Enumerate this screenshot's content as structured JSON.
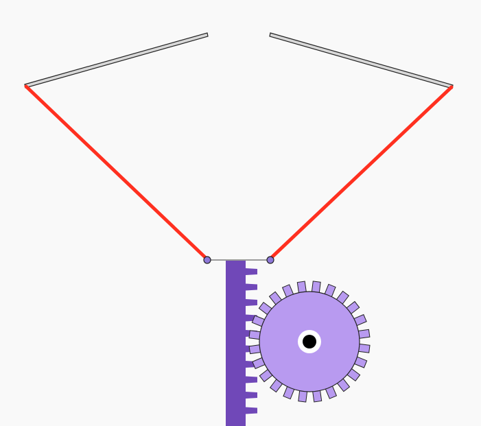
{
  "colors": {
    "background": "#f9f9f9",
    "cable": "#ff3020",
    "arm_fill": "#d8d8d8",
    "arm_stroke": "#222222",
    "rack": "#7048b8",
    "gear": "#b89af0",
    "outline": "#222222",
    "joint": "#8e78d8",
    "axle_ring": "#ffffff",
    "axle_hole": "#000000",
    "connector": "#9a9a9a"
  },
  "icons": {
    "left_arm": "rotating-arm",
    "right_arm": "rotating-arm",
    "left_cable": "cable-line",
    "right_cable": "cable-line",
    "rack": "gear-rack",
    "pinion": "pinion-gear",
    "axle": "axle-hole"
  }
}
